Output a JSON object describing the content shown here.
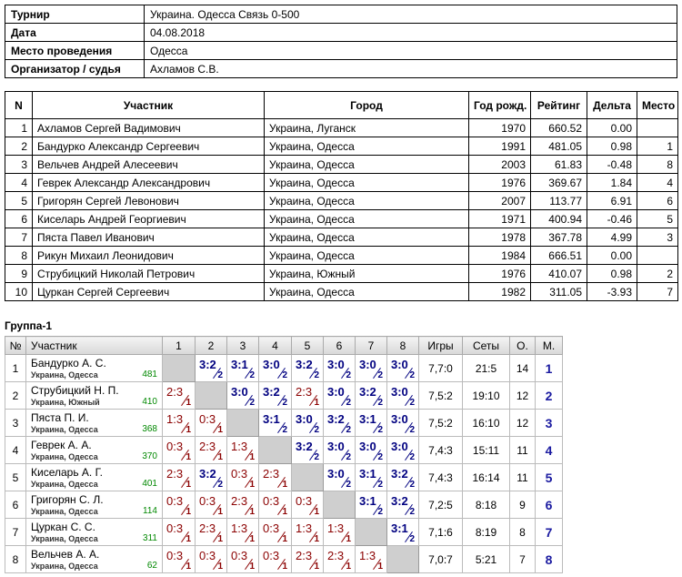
{
  "info": {
    "rows": [
      [
        "Турнир",
        "Украина. Одесса Связь 0-500"
      ],
      [
        "Дата",
        "04.08.2018"
      ],
      [
        "Место проведения",
        "Одесса"
      ],
      [
        "Организатор / судья",
        "Ахламов С.В."
      ]
    ]
  },
  "participants": {
    "headers": [
      "N",
      "Участник",
      "Город",
      "Год рожд.",
      "Рейтинг",
      "Дельта",
      "Место"
    ],
    "rows": [
      [
        1,
        "Ахламов Сергей Вадимович",
        "Украина, Луганск",
        1970,
        "660.52",
        "0.00",
        null
      ],
      [
        2,
        "Бандурко Александр Сергеевич",
        "Украина, Одесса",
        1991,
        "481.05",
        "0.98",
        1
      ],
      [
        3,
        "Вельчев Андрей Алесеевич",
        "Украина, Одесса",
        2003,
        "61.83",
        "-0.48",
        8
      ],
      [
        4,
        "Геврек Александр Александрович",
        "Украина, Одесса",
        1976,
        "369.67",
        "1.84",
        4
      ],
      [
        5,
        "Григорян Сергей Левонович",
        "Украина, Одесса",
        2007,
        "113.77",
        "6.91",
        6
      ],
      [
        6,
        "Киселарь Андрей Георгиевич",
        "Украина, Одесса",
        1971,
        "400.94",
        "-0.46",
        5
      ],
      [
        7,
        "Пяста Павел Иванович",
        "Украина, Одесса",
        1978,
        "367.78",
        "4.99",
        3
      ],
      [
        8,
        "Рикун Михаил Леонидович",
        "Украина, Одесса",
        1984,
        "666.51",
        "0.00",
        null
      ],
      [
        9,
        "Струбицкий Николай Петрович",
        "Украина, Южный",
        1976,
        "410.07",
        "0.98",
        2
      ],
      [
        10,
        "Цуркан Сергей Сергеевич",
        "Украина, Одесса",
        1982,
        "311.05",
        "-3.93",
        7
      ]
    ]
  },
  "group": {
    "title": "Группа-1",
    "headers": [
      "№",
      "Участник",
      "1",
      "2",
      "3",
      "4",
      "5",
      "6",
      "7",
      "8",
      "Игры",
      "Сеты",
      "О.",
      "М."
    ],
    "rows": [
      {
        "n": 1,
        "name": "Бандурко А. С.",
        "city": "Украина, Одесса",
        "rating": 481,
        "results": [
          null,
          {
            "score": "3:2",
            "points": 2
          },
          {
            "score": "3:1",
            "points": 2
          },
          {
            "score": "3:0",
            "points": 2
          },
          {
            "score": "3:2",
            "points": 2
          },
          {
            "score": "3:0",
            "points": 2
          },
          {
            "score": "3:0",
            "points": 2
          },
          {
            "score": "3:0",
            "points": 2
          }
        ],
        "games": "7,7:0",
        "sets": "21:5",
        "points": 14,
        "place": 1
      },
      {
        "n": 2,
        "name": "Струбицкий Н. П.",
        "city": "Украина, Южный",
        "rating": 410,
        "results": [
          {
            "score": "2:3",
            "points": 1
          },
          null,
          {
            "score": "3:0",
            "points": 2
          },
          {
            "score": "3:2",
            "points": 2
          },
          {
            "score": "2:3",
            "points": 1
          },
          {
            "score": "3:0",
            "points": 2
          },
          {
            "score": "3:2",
            "points": 2
          },
          {
            "score": "3:0",
            "points": 2
          }
        ],
        "games": "7,5:2",
        "sets": "19:10",
        "points": 12,
        "place": 2
      },
      {
        "n": 3,
        "name": "Пяста П. И.",
        "city": "Украина, Одесса",
        "rating": 368,
        "results": [
          {
            "score": "1:3",
            "points": 1
          },
          {
            "score": "0:3",
            "points": 1
          },
          null,
          {
            "score": "3:1",
            "points": 2
          },
          {
            "score": "3:0",
            "points": 2
          },
          {
            "score": "3:2",
            "points": 2
          },
          {
            "score": "3:1",
            "points": 2
          },
          {
            "score": "3:0",
            "points": 2
          }
        ],
        "games": "7,5:2",
        "sets": "16:10",
        "points": 12,
        "place": 3
      },
      {
        "n": 4,
        "name": "Геврек А. А.",
        "city": "Украина, Одесса",
        "rating": 370,
        "results": [
          {
            "score": "0:3",
            "points": 1
          },
          {
            "score": "2:3",
            "points": 1
          },
          {
            "score": "1:3",
            "points": 1
          },
          null,
          {
            "score": "3:2",
            "points": 2
          },
          {
            "score": "3:0",
            "points": 2
          },
          {
            "score": "3:0",
            "points": 2
          },
          {
            "score": "3:0",
            "points": 2
          }
        ],
        "games": "7,4:3",
        "sets": "15:11",
        "points": 11,
        "place": 4
      },
      {
        "n": 5,
        "name": "Киселарь А. Г.",
        "city": "Украина, Одесса",
        "rating": 401,
        "results": [
          {
            "score": "2:3",
            "points": 1
          },
          {
            "score": "3:2",
            "points": 2
          },
          {
            "score": "0:3",
            "points": 1
          },
          {
            "score": "2:3",
            "points": 1
          },
          null,
          {
            "score": "3:0",
            "points": 2
          },
          {
            "score": "3:1",
            "points": 2
          },
          {
            "score": "3:2",
            "points": 2
          }
        ],
        "games": "7,4:3",
        "sets": "16:14",
        "points": 11,
        "place": 5
      },
      {
        "n": 6,
        "name": "Григорян С. Л.",
        "city": "Украина, Одесса",
        "rating": 114,
        "results": [
          {
            "score": "0:3",
            "points": 1
          },
          {
            "score": "0:3",
            "points": 1
          },
          {
            "score": "2:3",
            "points": 1
          },
          {
            "score": "0:3",
            "points": 1
          },
          {
            "score": "0:3",
            "points": 1
          },
          null,
          {
            "score": "3:1",
            "points": 2
          },
          {
            "score": "3:2",
            "points": 2
          }
        ],
        "games": "7,2:5",
        "sets": "8:18",
        "points": 9,
        "place": 6
      },
      {
        "n": 7,
        "name": "Цуркан С. С.",
        "city": "Украина, Одесса",
        "rating": 311,
        "results": [
          {
            "score": "0:3",
            "points": 1
          },
          {
            "score": "2:3",
            "points": 1
          },
          {
            "score": "1:3",
            "points": 1
          },
          {
            "score": "0:3",
            "points": 1
          },
          {
            "score": "1:3",
            "points": 1
          },
          {
            "score": "1:3",
            "points": 1
          },
          null,
          {
            "score": "3:1",
            "points": 2
          }
        ],
        "games": "7,1:6",
        "sets": "8:19",
        "points": 8,
        "place": 7
      },
      {
        "n": 8,
        "name": "Вельчев А. А.",
        "city": "Украина, Одесса",
        "rating": 62,
        "results": [
          {
            "score": "0:3",
            "points": 1
          },
          {
            "score": "0:3",
            "points": 1
          },
          {
            "score": "0:3",
            "points": 1
          },
          {
            "score": "0:3",
            "points": 1
          },
          {
            "score": "2:3",
            "points": 1
          },
          {
            "score": "2:3",
            "points": 1
          },
          {
            "score": "1:3",
            "points": 1
          },
          null
        ],
        "games": "7,0:7",
        "sets": "5:21",
        "points": 7,
        "place": 8
      }
    ]
  }
}
